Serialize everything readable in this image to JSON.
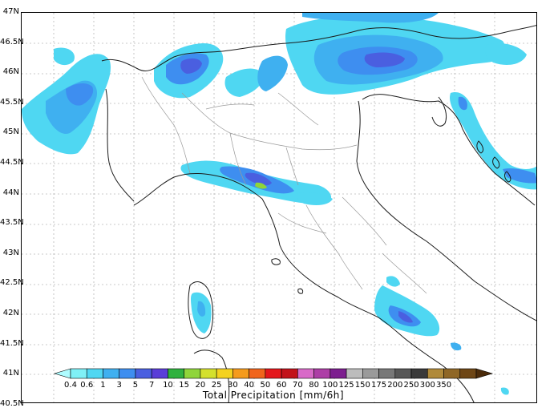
{
  "map": {
    "latitude_labels": [
      "47N",
      "46.5N",
      "46N",
      "45.5N",
      "45N",
      "44.5N",
      "44N",
      "43.5N",
      "43N",
      "42.5N",
      "42N",
      "41.5N",
      "41N",
      "40.5N"
    ]
  },
  "colorbar": {
    "title": "Total Precipitation [mm/6h]",
    "labels": [
      "0.4",
      "0.6",
      "1",
      "3",
      "5",
      "7",
      "10",
      "15",
      "20",
      "25",
      "30",
      "40",
      "50",
      "60",
      "70",
      "80",
      "100",
      "125",
      "150",
      "175",
      "200",
      "250",
      "300",
      "350"
    ],
    "colors": [
      "#aefcff",
      "#7ff0f6",
      "#4fd7f2",
      "#3fb0f0",
      "#3e8ef0",
      "#4a5fe0",
      "#5a3ed8",
      "#2fb13e",
      "#8fd53a",
      "#d4e02d",
      "#f4d21f",
      "#f59b1c",
      "#f0641b",
      "#e4161b",
      "#c2121a",
      "#d86ac8",
      "#ad3ea6",
      "#7d1e8f",
      "#bcbcbc",
      "#9a9a9a",
      "#787878",
      "#575757",
      "#3a3a3a",
      "#b08a3a",
      "#8f6726",
      "#6e4615",
      "#4b2b0a"
    ]
  },
  "precip_colors": {
    "light": "#4fd7f2",
    "mid": "#3fb0f0",
    "strong": "#3e8ef0",
    "heavy": "#4a5fe0",
    "green": "#8fd53a"
  }
}
